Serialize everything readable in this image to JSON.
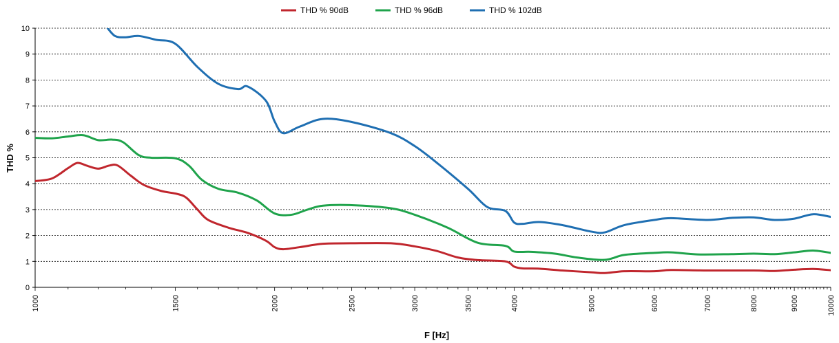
{
  "chart_data": {
    "type": "line",
    "xlabel": "F [Hz]",
    "ylabel": "THD %",
    "xscale": "log",
    "xlim": [
      1000,
      10000
    ],
    "ylim": [
      0,
      10
    ],
    "x_ticks": [
      "1000",
      "1500",
      "2000",
      "2500",
      "3000",
      "3500",
      "4000",
      "5000",
      "6000",
      "7000",
      "8000",
      "9000",
      "10000"
    ],
    "y_ticks": [
      "0",
      "1",
      "2",
      "3",
      "4",
      "5",
      "6",
      "7",
      "8",
      "9",
      "10"
    ],
    "grid": "horizontal dashed",
    "legend_position": "top-center",
    "series": [
      {
        "name": "THD % 90dB",
        "color": "#c0262d",
        "points": [
          [
            1000,
            4.1
          ],
          [
            1050,
            4.2
          ],
          [
            1100,
            4.6
          ],
          [
            1130,
            4.8
          ],
          [
            1160,
            4.7
          ],
          [
            1200,
            4.58
          ],
          [
            1240,
            4.7
          ],
          [
            1270,
            4.7
          ],
          [
            1320,
            4.3
          ],
          [
            1370,
            3.95
          ],
          [
            1440,
            3.72
          ],
          [
            1510,
            3.6
          ],
          [
            1550,
            3.45
          ],
          [
            1600,
            3.0
          ],
          [
            1650,
            2.6
          ],
          [
            1750,
            2.3
          ],
          [
            1850,
            2.1
          ],
          [
            1950,
            1.8
          ],
          [
            2000,
            1.55
          ],
          [
            2050,
            1.47
          ],
          [
            2150,
            1.55
          ],
          [
            2300,
            1.68
          ],
          [
            2500,
            1.7
          ],
          [
            2800,
            1.7
          ],
          [
            3000,
            1.58
          ],
          [
            3200,
            1.4
          ],
          [
            3400,
            1.15
          ],
          [
            3600,
            1.05
          ],
          [
            3900,
            1.0
          ],
          [
            4000,
            0.8
          ],
          [
            4100,
            0.73
          ],
          [
            4300,
            0.72
          ],
          [
            4600,
            0.65
          ],
          [
            5000,
            0.58
          ],
          [
            5200,
            0.55
          ],
          [
            5500,
            0.62
          ],
          [
            6000,
            0.62
          ],
          [
            6300,
            0.67
          ],
          [
            7000,
            0.65
          ],
          [
            8000,
            0.65
          ],
          [
            8500,
            0.63
          ],
          [
            9000,
            0.68
          ],
          [
            9500,
            0.71
          ],
          [
            10000,
            0.66
          ]
        ]
      },
      {
        "name": "THD % 96dB",
        "color": "#1fa34b",
        "points": [
          [
            1000,
            5.77
          ],
          [
            1050,
            5.75
          ],
          [
            1100,
            5.82
          ],
          [
            1150,
            5.87
          ],
          [
            1200,
            5.68
          ],
          [
            1250,
            5.7
          ],
          [
            1290,
            5.6
          ],
          [
            1350,
            5.1
          ],
          [
            1400,
            5.0
          ],
          [
            1500,
            4.98
          ],
          [
            1560,
            4.7
          ],
          [
            1620,
            4.15
          ],
          [
            1700,
            3.8
          ],
          [
            1800,
            3.65
          ],
          [
            1900,
            3.35
          ],
          [
            2000,
            2.85
          ],
          [
            2100,
            2.8
          ],
          [
            2200,
            3.0
          ],
          [
            2300,
            3.15
          ],
          [
            2500,
            3.17
          ],
          [
            2800,
            3.05
          ],
          [
            3000,
            2.8
          ],
          [
            3300,
            2.3
          ],
          [
            3600,
            1.72
          ],
          [
            3900,
            1.6
          ],
          [
            4000,
            1.38
          ],
          [
            4200,
            1.37
          ],
          [
            4500,
            1.3
          ],
          [
            4800,
            1.15
          ],
          [
            5200,
            1.06
          ],
          [
            5500,
            1.25
          ],
          [
            6000,
            1.33
          ],
          [
            6300,
            1.35
          ],
          [
            6800,
            1.27
          ],
          [
            7500,
            1.28
          ],
          [
            8000,
            1.3
          ],
          [
            8500,
            1.28
          ],
          [
            9000,
            1.35
          ],
          [
            9500,
            1.42
          ],
          [
            10000,
            1.33
          ]
        ]
      },
      {
        "name": "THD % 102dB",
        "color": "#1f6fb2",
        "points": [
          [
            1230,
            10.05
          ],
          [
            1260,
            9.7
          ],
          [
            1300,
            9.65
          ],
          [
            1350,
            9.7
          ],
          [
            1420,
            9.55
          ],
          [
            1500,
            9.4
          ],
          [
            1600,
            8.5
          ],
          [
            1700,
            7.85
          ],
          [
            1800,
            7.65
          ],
          [
            1850,
            7.75
          ],
          [
            1950,
            7.2
          ],
          [
            2000,
            6.4
          ],
          [
            2050,
            5.95
          ],
          [
            2150,
            6.2
          ],
          [
            2300,
            6.5
          ],
          [
            2500,
            6.38
          ],
          [
            2800,
            5.95
          ],
          [
            3000,
            5.45
          ],
          [
            3200,
            4.8
          ],
          [
            3500,
            3.8
          ],
          [
            3700,
            3.1
          ],
          [
            3900,
            2.95
          ],
          [
            4000,
            2.5
          ],
          [
            4100,
            2.45
          ],
          [
            4300,
            2.52
          ],
          [
            4600,
            2.4
          ],
          [
            5000,
            2.15
          ],
          [
            5200,
            2.12
          ],
          [
            5500,
            2.4
          ],
          [
            6000,
            2.6
          ],
          [
            6300,
            2.67
          ],
          [
            7000,
            2.6
          ],
          [
            7500,
            2.68
          ],
          [
            8000,
            2.7
          ],
          [
            8500,
            2.6
          ],
          [
            9000,
            2.65
          ],
          [
            9500,
            2.82
          ],
          [
            10000,
            2.72
          ]
        ]
      }
    ]
  }
}
